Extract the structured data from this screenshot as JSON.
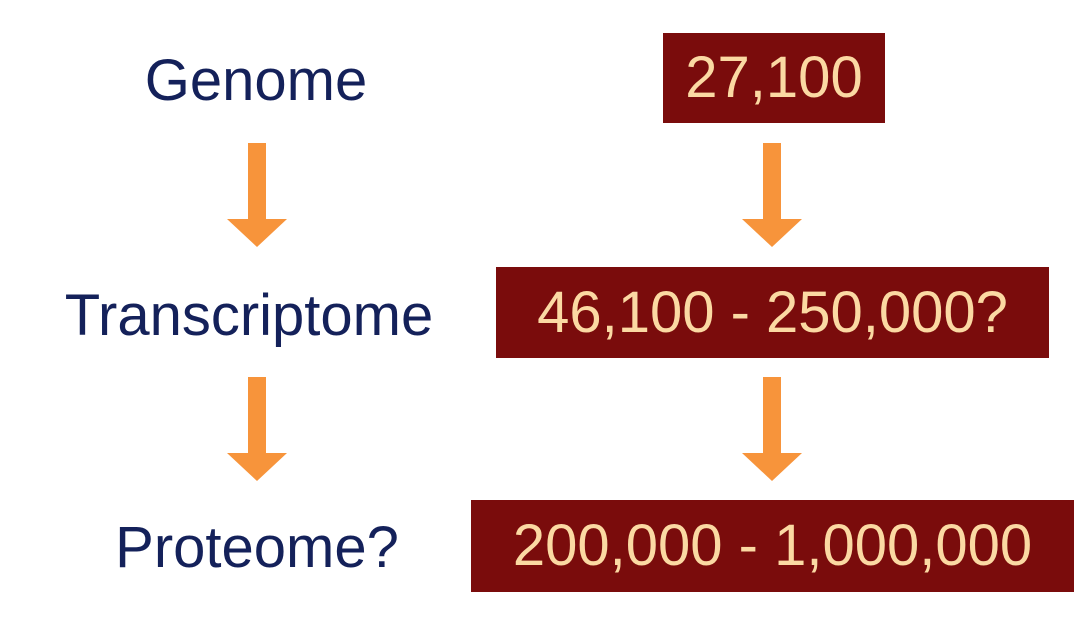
{
  "left_column": {
    "genome": "Genome",
    "transcriptome": "Transcriptome",
    "proteome": "Proteome?"
  },
  "right_column": {
    "genome_count": "27,100",
    "transcriptome_count": "46,100 - 250,000?",
    "proteome_count": "200,000 - 1,000,000"
  },
  "colors": {
    "label_text": "#14215a",
    "box_fill": "#7a0c0c",
    "box_text": "#fbd9a3",
    "arrow": "#f7943b"
  },
  "icons": {
    "arrow": "down-arrow-icon"
  }
}
